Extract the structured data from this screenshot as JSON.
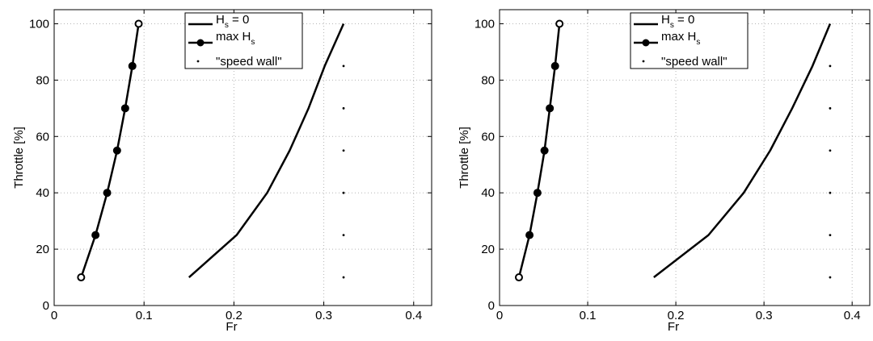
{
  "chart_data": [
    {
      "type": "line",
      "title": "",
      "xlabel": "Fr",
      "ylabel": "Throttle [%]",
      "xlim": [
        0,
        0.42
      ],
      "ylim": [
        0,
        105
      ],
      "xticks": [
        0,
        0.1,
        0.2,
        0.3,
        0.4
      ],
      "xtick_labels": [
        "0",
        "0.1",
        "0.2",
        "0.3",
        "0.4"
      ],
      "yticks": [
        0,
        20,
        40,
        60,
        80,
        100
      ],
      "ytick_labels": [
        "0",
        "20",
        "40",
        "60",
        "80",
        "100"
      ],
      "grid": true,
      "legend_position": "top-center",
      "series": [
        {
          "legend": "H_s = 0",
          "style": "line",
          "x": [
            0.15,
            0.203,
            0.237,
            0.262,
            0.283,
            0.301,
            0.322
          ],
          "y": [
            10,
            25,
            40,
            55,
            70,
            85,
            100
          ]
        },
        {
          "legend": "max H_s",
          "style": "line-markers",
          "x": [
            0.03,
            0.046,
            0.059,
            0.07,
            0.079,
            0.087,
            0.094
          ],
          "y": [
            10,
            25,
            40,
            55,
            70,
            85,
            100
          ]
        },
        {
          "legend": "\"speed wall\"",
          "style": "points",
          "x": [
            0.322,
            0.322,
            0.322,
            0.322,
            0.322,
            0.322
          ],
          "y": [
            10,
            25,
            40,
            55,
            70,
            85
          ]
        }
      ]
    },
    {
      "type": "line",
      "title": "",
      "xlabel": "Fr",
      "ylabel": "Throttle [%]",
      "xlim": [
        0,
        0.42
      ],
      "ylim": [
        0,
        105
      ],
      "xticks": [
        0,
        0.1,
        0.2,
        0.3,
        0.4
      ],
      "xtick_labels": [
        "0",
        "0.1",
        "0.2",
        "0.3",
        "0.4"
      ],
      "yticks": [
        0,
        20,
        40,
        60,
        80,
        100
      ],
      "ytick_labels": [
        "0",
        "20",
        "40",
        "60",
        "80",
        "100"
      ],
      "grid": true,
      "legend_position": "top-center",
      "series": [
        {
          "legend": "H_s = 0",
          "style": "line",
          "x": [
            0.175,
            0.237,
            0.277,
            0.307,
            0.332,
            0.355,
            0.375
          ],
          "y": [
            10,
            25,
            40,
            55,
            70,
            85,
            100
          ]
        },
        {
          "legend": "max H_s",
          "style": "line-markers",
          "x": [
            0.022,
            0.034,
            0.043,
            0.051,
            0.057,
            0.063,
            0.068
          ],
          "y": [
            10,
            25,
            40,
            55,
            70,
            85,
            100
          ]
        },
        {
          "legend": "\"speed wall\"",
          "style": "points",
          "x": [
            0.375,
            0.375,
            0.375,
            0.375,
            0.375,
            0.375
          ],
          "y": [
            10,
            25,
            40,
            55,
            70,
            85
          ]
        }
      ]
    }
  ]
}
